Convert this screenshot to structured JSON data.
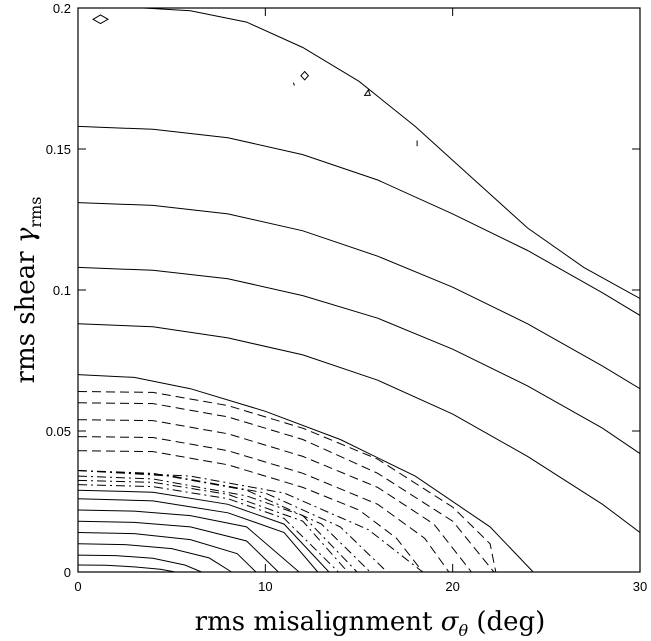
{
  "chart_data": {
    "type": "contour",
    "xlabel": "rms misalignment σθ (deg)",
    "xlabel_main": "rms misalignment ",
    "xlabel_symbol": "σ",
    "xlabel_subscript": "θ",
    "xlabel_unit": " (deg)",
    "ylabel": "rms shear γrms",
    "ylabel_main": "rms shear ",
    "ylabel_symbol": "γ",
    "ylabel_subscript": "rms",
    "xlim": [
      0,
      30
    ],
    "ylim": [
      0,
      0.2
    ],
    "x_ticks": [
      0,
      10,
      20,
      30
    ],
    "x_tick_labels": [
      "0",
      "10",
      "20",
      "30"
    ],
    "y_ticks": [
      0,
      0.05,
      0.1,
      0.15,
      0.2
    ],
    "y_tick_labels": [
      "0",
      "0.05",
      "0.1",
      "0.15",
      "0.2"
    ],
    "contours": [
      {
        "style": "solid",
        "points": [
          [
            0,
            0.0025
          ],
          [
            1.5,
            0.0024
          ],
          [
            3,
            0.0018
          ],
          [
            4.4,
            0.001
          ],
          [
            5.2,
            0
          ]
        ]
      },
      {
        "style": "solid",
        "points": [
          [
            0,
            0.006
          ],
          [
            2,
            0.0058
          ],
          [
            4,
            0.0049
          ],
          [
            5.7,
            0.0025
          ],
          [
            6.6,
            0
          ]
        ]
      },
      {
        "style": "solid",
        "points": [
          [
            0,
            0.01
          ],
          [
            2.5,
            0.0097
          ],
          [
            5,
            0.0083
          ],
          [
            7,
            0.005
          ],
          [
            8.2,
            0
          ]
        ]
      },
      {
        "style": "solid",
        "points": [
          [
            0,
            0.014
          ],
          [
            3,
            0.0136
          ],
          [
            6,
            0.0115
          ],
          [
            8.5,
            0.0065
          ],
          [
            9.5,
            0
          ]
        ]
      },
      {
        "style": "solid",
        "points": [
          [
            0,
            0.018
          ],
          [
            3,
            0.0176
          ],
          [
            6,
            0.016
          ],
          [
            9,
            0.011
          ],
          [
            10.7,
            0
          ]
        ]
      },
      {
        "style": "solid",
        "points": [
          [
            0,
            0.022
          ],
          [
            3,
            0.0216
          ],
          [
            6,
            0.02
          ],
          [
            9,
            0.016
          ],
          [
            11.8,
            0
          ]
        ]
      },
      {
        "style": "solid",
        "points": [
          [
            0,
            0.026
          ],
          [
            4,
            0.0252
          ],
          [
            8,
            0.021
          ],
          [
            11,
            0.014
          ],
          [
            12.8,
            0
          ]
        ]
      },
      {
        "style": "solid",
        "points": [
          [
            0,
            0.029
          ],
          [
            4,
            0.0283
          ],
          [
            8,
            0.024
          ],
          [
            11,
            0.017
          ],
          [
            13.4,
            0
          ]
        ]
      },
      {
        "style": "dashdot",
        "points": [
          [
            0,
            0.031
          ],
          [
            4,
            0.0303
          ],
          [
            8,
            0.026
          ],
          [
            11,
            0.019
          ],
          [
            13.9,
            0
          ]
        ]
      },
      {
        "style": "dashdot",
        "points": [
          [
            0,
            0.0325
          ],
          [
            4,
            0.0318
          ],
          [
            8,
            0.0275
          ],
          [
            12,
            0.018
          ],
          [
            14.4,
            0
          ]
        ]
      },
      {
        "style": "dashdot",
        "points": [
          [
            0,
            0.034
          ],
          [
            4,
            0.033
          ],
          [
            9,
            0.027
          ],
          [
            12,
            0.02
          ],
          [
            14.9,
            0
          ]
        ]
      },
      {
        "style": "dashdot",
        "points": [
          [
            0,
            0.036
          ],
          [
            4,
            0.035
          ],
          [
            9,
            0.029
          ],
          [
            13,
            0.017
          ],
          [
            15.6,
            0
          ]
        ]
      },
      {
        "style": "dashdot",
        "points": [
          [
            0,
            0.036
          ],
          [
            5,
            0.034
          ],
          [
            10,
            0.028
          ],
          [
            14,
            0.016
          ],
          [
            16.5,
            0
          ]
        ]
      },
      {
        "style": "dashdot",
        "points": [
          [
            0,
            0.036
          ],
          [
            6,
            0.034
          ],
          [
            11,
            0.028
          ],
          [
            15.5,
            0.015
          ],
          [
            18.4,
            0
          ]
        ]
      },
      {
        "style": "dashed",
        "points": [
          [
            0,
            0.043
          ],
          [
            4,
            0.0427
          ],
          [
            8,
            0.038
          ],
          [
            12,
            0.03
          ],
          [
            15,
            0.022
          ],
          [
            17,
            0.012
          ],
          [
            18.4,
            0
          ]
        ]
      },
      {
        "style": "dashed",
        "points": [
          [
            0,
            0.048
          ],
          [
            4,
            0.0477
          ],
          [
            8,
            0.043
          ],
          [
            12,
            0.035
          ],
          [
            16,
            0.024
          ],
          [
            18.5,
            0.012
          ],
          [
            19.8,
            0
          ]
        ]
      },
      {
        "style": "dashed",
        "points": [
          [
            0,
            0.054
          ],
          [
            4,
            0.0537
          ],
          [
            8,
            0.049
          ],
          [
            12,
            0.041
          ],
          [
            16,
            0.03
          ],
          [
            19,
            0.017
          ],
          [
            21,
            0
          ]
        ]
      },
      {
        "style": "dashed",
        "points": [
          [
            0,
            0.06
          ],
          [
            4,
            0.0597
          ],
          [
            8,
            0.055
          ],
          [
            12,
            0.047
          ],
          [
            16,
            0.035
          ],
          [
            20,
            0.018
          ],
          [
            22.2,
            0
          ]
        ]
      },
      {
        "style": "dashed",
        "points": [
          [
            0,
            0.064
          ],
          [
            4,
            0.0637
          ],
          [
            8,
            0.059
          ],
          [
            12,
            0.051
          ],
          [
            16,
            0.04
          ],
          [
            20,
            0.023
          ],
          [
            22,
            0.01
          ],
          [
            22.3,
            0
          ]
        ]
      },
      {
        "style": "solid",
        "points": [
          [
            0,
            0.07
          ],
          [
            3,
            0.069
          ],
          [
            6,
            0.065
          ],
          [
            10,
            0.057
          ],
          [
            14,
            0.047
          ],
          [
            18,
            0.034
          ],
          [
            22,
            0.016
          ],
          [
            24.3,
            0
          ]
        ]
      },
      {
        "style": "solid",
        "points": [
          [
            0,
            0.088
          ],
          [
            4,
            0.087
          ],
          [
            8,
            0.083
          ],
          [
            12,
            0.077
          ],
          [
            16,
            0.068
          ],
          [
            20,
            0.056
          ],
          [
            24,
            0.041
          ],
          [
            28,
            0.024
          ],
          [
            30,
            0.014
          ]
        ]
      },
      {
        "style": "solid",
        "points": [
          [
            0,
            0.108
          ],
          [
            4,
            0.107
          ],
          [
            8,
            0.104
          ],
          [
            12,
            0.098
          ],
          [
            16,
            0.09
          ],
          [
            20,
            0.079
          ],
          [
            24,
            0.066
          ],
          [
            28,
            0.051
          ],
          [
            30,
            0.042
          ]
        ]
      },
      {
        "style": "solid",
        "points": [
          [
            0,
            0.131
          ],
          [
            4,
            0.13
          ],
          [
            8,
            0.127
          ],
          [
            12,
            0.121
          ],
          [
            16,
            0.112
          ],
          [
            20,
            0.101
          ],
          [
            24,
            0.088
          ],
          [
            28,
            0.073
          ],
          [
            30,
            0.065
          ]
        ]
      },
      {
        "style": "solid",
        "points": [
          [
            0,
            0.158
          ],
          [
            4,
            0.157
          ],
          [
            8,
            0.154
          ],
          [
            12,
            0.148
          ],
          [
            16,
            0.139
          ],
          [
            20,
            0.127
          ],
          [
            24,
            0.114
          ],
          [
            28,
            0.099
          ],
          [
            30,
            0.091
          ]
        ]
      },
      {
        "style": "solid",
        "points": [
          [
            3.5,
            0.2
          ],
          [
            6,
            0.199
          ],
          [
            9,
            0.195
          ],
          [
            12,
            0.186
          ],
          [
            15,
            0.174
          ],
          [
            18,
            0.158
          ],
          [
            21,
            0.14
          ],
          [
            24,
            0.122
          ],
          [
            27,
            0.108
          ],
          [
            30,
            0.097
          ]
        ]
      },
      {
        "style": "solid",
        "closed": true,
        "points": [
          [
            0.8,
            0.196
          ],
          [
            1.2,
            0.1975
          ],
          [
            1.6,
            0.196
          ],
          [
            1.2,
            0.1945
          ]
        ]
      },
      {
        "style": "solid",
        "closed": true,
        "points": [
          [
            11.9,
            0.176
          ],
          [
            12.1,
            0.1775
          ],
          [
            12.3,
            0.176
          ],
          [
            12.1,
            0.1745
          ]
        ]
      },
      {
        "style": "solid",
        "closed": true,
        "points": [
          [
            15.3,
            0.169
          ],
          [
            15.5,
            0.171
          ],
          [
            15.6,
            0.169
          ]
        ]
      },
      {
        "style": "solid",
        "points": [
          [
            11.5,
            0.1735
          ],
          [
            11.55,
            0.1725
          ]
        ]
      },
      {
        "style": "solid",
        "points": [
          [
            18.1,
            0.153
          ],
          [
            18.1,
            0.151
          ]
        ]
      }
    ]
  }
}
